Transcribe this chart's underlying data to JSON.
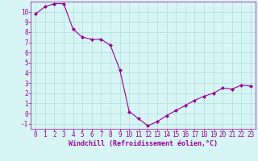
{
  "x": [
    0,
    1,
    2,
    3,
    4,
    5,
    6,
    7,
    8,
    9,
    10,
    11,
    12,
    13,
    14,
    15,
    16,
    17,
    18,
    19,
    20,
    21,
    22,
    23
  ],
  "y": [
    9.8,
    10.5,
    10.8,
    10.8,
    8.3,
    7.5,
    7.3,
    7.3,
    6.7,
    4.3,
    0.2,
    -0.5,
    -1.2,
    -0.8,
    -0.2,
    0.3,
    0.8,
    1.3,
    1.7,
    2.0,
    2.5,
    2.4,
    2.8,
    2.7
  ],
  "line_color": "#990099",
  "marker": "D",
  "marker_size": 2,
  "bg_color": "#d8f5f5",
  "grid_color": "#aadddd",
  "xlabel": "Windchill (Refroidissement éolien,°C)",
  "xlabel_color": "#990099",
  "tick_color": "#990099",
  "ylim": [
    -1.5,
    11.0
  ],
  "xlim": [
    -0.5,
    23.5
  ],
  "yticks": [
    -1,
    0,
    1,
    2,
    3,
    4,
    5,
    6,
    7,
    8,
    9,
    10
  ],
  "xticks": [
    0,
    1,
    2,
    3,
    4,
    5,
    6,
    7,
    8,
    9,
    10,
    11,
    12,
    13,
    14,
    15,
    16,
    17,
    18,
    19,
    20,
    21,
    22,
    23
  ],
  "font_size": 5.5,
  "xlabel_font_size": 6.0
}
